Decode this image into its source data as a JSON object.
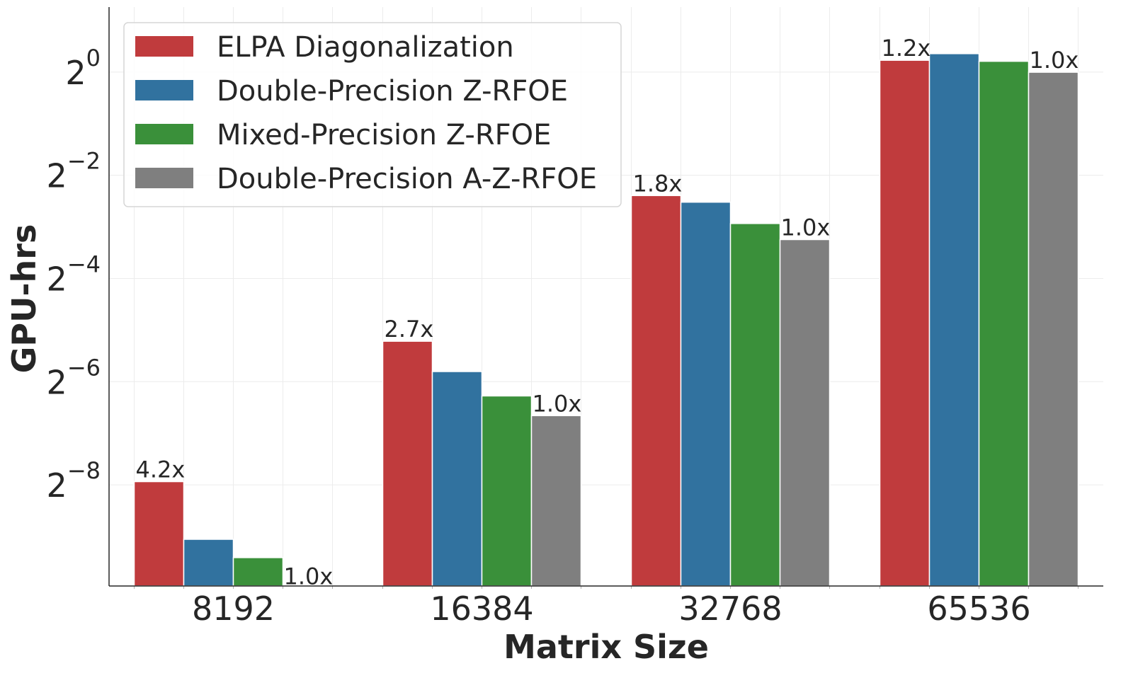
{
  "chart_data": {
    "type": "bar",
    "title": "",
    "xlabel": "Matrix Size",
    "ylabel": "GPU-hrs",
    "yscale": "log2",
    "categories": [
      "8192",
      "16384",
      "32768",
      "65536"
    ],
    "series": [
      {
        "name": "ELPA Diagonalization",
        "color": "#c03b3d",
        "values": [
          0.00408,
          0.0269,
          0.1904,
          1.172
        ]
      },
      {
        "name": "Double-Precision Z-RFOE",
        "color": "#31729f",
        "values": [
          0.00188,
          0.0179,
          0.1742,
          1.281
        ]
      },
      {
        "name": "Mixed-Precision Z-RFOE",
        "color": "#3a903a",
        "values": [
          0.00147,
          0.0129,
          0.1308,
          1.156
        ]
      },
      {
        "name": "Double-Precision A-Z-RFOE",
        "color": "#7f7f7f",
        "values": [
          0.00097,
          0.0099,
          0.1054,
          0.998
        ]
      }
    ],
    "speedup_labels": {
      "elpa": [
        "4.2x",
        "2.7x",
        "1.8x",
        "1.2x"
      ],
      "azrfoe": [
        "1.0x",
        "1.0x",
        "1.0x",
        "1.0x"
      ]
    },
    "yticks": [
      {
        "exp": -8,
        "base": "2",
        "sup": "−8"
      },
      {
        "exp": -6,
        "base": "2",
        "sup": "−6"
      },
      {
        "exp": -4,
        "base": "2",
        "sup": "−4"
      },
      {
        "exp": -2,
        "base": "2",
        "sup": "−2"
      },
      {
        "exp": 0,
        "base": "2",
        "sup": "0"
      }
    ],
    "ylim_log2": [
      -9.96,
      1.26
    ],
    "grid": true,
    "legend_position": "top-left"
  }
}
